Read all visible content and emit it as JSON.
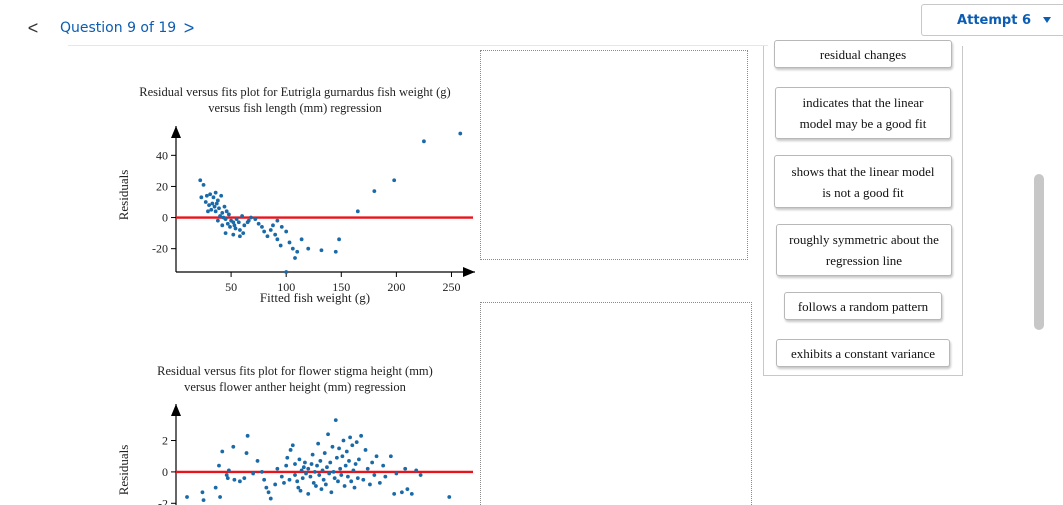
{
  "nav": {
    "prev_icon": "chevron-left-icon",
    "prev_glyph": "<",
    "title": "Question 9 of 19",
    "next_icon": "chevron-right-icon",
    "next_glyph": ">"
  },
  "attempt": {
    "label": "Attempt 6",
    "caret_icon": "caret-down-icon"
  },
  "colors": {
    "accent": "#0b5db3",
    "points": "#1a6aa8",
    "zero_line": "#e8141b"
  },
  "plots": [
    {
      "title_line1": "Residual versus fits plot for Eutrigla gurnardus fish weight (g)",
      "title_line2": "versus fish length (mm) regression",
      "ylabel": "Residuals",
      "xlabel": "Fitted fish weight (g)",
      "chart_data": {
        "type": "scatter",
        "title": "Residual versus fits plot for Eutrigla gurnardus fish weight (g) versus fish length (mm) regression",
        "xlabel": "Fitted fish weight (g)",
        "ylabel": "Residuals",
        "xticks": [
          50,
          100,
          150,
          200,
          250
        ],
        "yticks": [
          40,
          20,
          0,
          -20
        ],
        "xlim": [
          0,
          265
        ],
        "ylim": [
          -35,
          55
        ],
        "reference_line": {
          "y": 0,
          "color": "#e8141b"
        },
        "points": [
          [
            22,
            24
          ],
          [
            25,
            21
          ],
          [
            23,
            13
          ],
          [
            28,
            14
          ],
          [
            31,
            15
          ],
          [
            34,
            13
          ],
          [
            36,
            16
          ],
          [
            38,
            11
          ],
          [
            41,
            14
          ],
          [
            27,
            10
          ],
          [
            30,
            8
          ],
          [
            33,
            9
          ],
          [
            35,
            7
          ],
          [
            37,
            9
          ],
          [
            29,
            4
          ],
          [
            32,
            5
          ],
          [
            36,
            4
          ],
          [
            39,
            6
          ],
          [
            42,
            3
          ],
          [
            44,
            7
          ],
          [
            46,
            4
          ],
          [
            40,
            1
          ],
          [
            43,
            0
          ],
          [
            45,
            -1
          ],
          [
            48,
            2
          ],
          [
            50,
            -2
          ],
          [
            47,
            -4
          ],
          [
            52,
            -3
          ],
          [
            55,
            -1
          ],
          [
            53,
            -5
          ],
          [
            57,
            -3
          ],
          [
            60,
            1
          ],
          [
            49,
            -6
          ],
          [
            54,
            -7
          ],
          [
            58,
            -8
          ],
          [
            62,
            -5
          ],
          [
            65,
            -3
          ],
          [
            38,
            -2
          ],
          [
            42,
            -5
          ],
          [
            45,
            -10
          ],
          [
            52,
            -11
          ],
          [
            58,
            -12
          ],
          [
            61,
            -10
          ],
          [
            66,
            -2
          ],
          [
            68,
            0
          ],
          [
            72,
            -1
          ],
          [
            75,
            -4
          ],
          [
            78,
            -6
          ],
          [
            80,
            -9
          ],
          [
            83,
            -12
          ],
          [
            86,
            -8
          ],
          [
            90,
            -11
          ],
          [
            92,
            -14
          ],
          [
            95,
            -18
          ],
          [
            88,
            -5
          ],
          [
            92,
            -2
          ],
          [
            96,
            -6
          ],
          [
            100,
            -9
          ],
          [
            103,
            -16
          ],
          [
            106,
            -20
          ],
          [
            110,
            -22
          ],
          [
            114,
            -14
          ],
          [
            120,
            -20
          ],
          [
            132,
            -21
          ],
          [
            145,
            -22
          ],
          [
            148,
            -14
          ],
          [
            100,
            -35
          ],
          [
            108,
            -26
          ],
          [
            165,
            4
          ],
          [
            180,
            17
          ],
          [
            198,
            24
          ],
          [
            225,
            49
          ],
          [
            258,
            54
          ]
        ]
      }
    },
    {
      "title_line1": "Residual versus fits plot for flower stigma height (mm)",
      "title_line2": "versus flower anther height (mm) regression",
      "ylabel": "Residuals",
      "chart_data": {
        "type": "scatter",
        "title": "Residual versus fits plot for flower stigma height (mm) versus flower anther height (mm) regression",
        "ylabel": "Residuals",
        "yticks": [
          2,
          0,
          -2
        ],
        "xlim": [
          0,
          265
        ],
        "ylim": [
          -2.3,
          4.2
        ],
        "reference_line": {
          "y": 0,
          "color": "#e8141b"
        },
        "points": [
          [
            10,
            -1.6
          ],
          [
            12,
            -2.0
          ],
          [
            24,
            -1.3
          ],
          [
            25,
            -1.8
          ],
          [
            26,
            -2.1
          ],
          [
            36,
            -1.0
          ],
          [
            40,
            -1.6
          ],
          [
            39,
            0.4
          ],
          [
            42,
            1.3
          ],
          [
            46,
            -0.2
          ],
          [
            47,
            -0.4
          ],
          [
            48,
            0.1
          ],
          [
            52,
            1.6
          ],
          [
            53,
            -0.5
          ],
          [
            58,
            -0.6
          ],
          [
            62,
            -0.4
          ],
          [
            64,
            1.2
          ],
          [
            65,
            2.3
          ],
          [
            70,
            -0.1
          ],
          [
            74,
            0.7
          ],
          [
            78,
            0.0
          ],
          [
            80,
            -0.5
          ],
          [
            82,
            -1.0
          ],
          [
            84,
            -1.3
          ],
          [
            86,
            -1.7
          ],
          [
            88,
            -2.2
          ],
          [
            90,
            -0.8
          ],
          [
            92,
            0.2
          ],
          [
            96,
            -0.3
          ],
          [
            98,
            -0.7
          ],
          [
            100,
            0.4
          ],
          [
            101,
            0.9
          ],
          [
            103,
            -0.5
          ],
          [
            104,
            1.4
          ],
          [
            106,
            1.7
          ],
          [
            108,
            0.5
          ],
          [
            108,
            -0.2
          ],
          [
            110,
            -0.6
          ],
          [
            111,
            -1.0
          ],
          [
            112,
            0.8
          ],
          [
            113,
            -1.2
          ],
          [
            114,
            0.1
          ],
          [
            115,
            -0.4
          ],
          [
            116,
            0.3
          ],
          [
            117,
            0.6
          ],
          [
            118,
            -0.1
          ],
          [
            120,
            -1.4
          ],
          [
            120,
            0.2
          ],
          [
            122,
            -0.3
          ],
          [
            123,
            0.5
          ],
          [
            124,
            1.1
          ],
          [
            125,
            -0.7
          ],
          [
            126,
            0.0
          ],
          [
            127,
            -0.9
          ],
          [
            128,
            0.4
          ],
          [
            129,
            1.8
          ],
          [
            130,
            -0.2
          ],
          [
            131,
            0.7
          ],
          [
            132,
            -1.1
          ],
          [
            133,
            0.1
          ],
          [
            134,
            -0.5
          ],
          [
            135,
            1.2
          ],
          [
            136,
            -0.8
          ],
          [
            137,
            0.3
          ],
          [
            138,
            2.4
          ],
          [
            139,
            -0.1
          ],
          [
            140,
            0.6
          ],
          [
            141,
            -1.3
          ],
          [
            142,
            1.6
          ],
          [
            143,
            0.0
          ],
          [
            144,
            -0.4
          ],
          [
            145,
            3.3
          ],
          [
            146,
            0.9
          ],
          [
            147,
            -0.6
          ],
          [
            148,
            1.5
          ],
          [
            149,
            0.2
          ],
          [
            150,
            -0.2
          ],
          [
            151,
            1.0
          ],
          [
            152,
            2.0
          ],
          [
            153,
            -0.9
          ],
          [
            154,
            0.4
          ],
          [
            155,
            1.3
          ],
          [
            156,
            -0.3
          ],
          [
            157,
            0.7
          ],
          [
            158,
            2.2
          ],
          [
            159,
            -0.6
          ],
          [
            160,
            1.7
          ],
          [
            161,
            0.1
          ],
          [
            162,
            -1.0
          ],
          [
            163,
            0.5
          ],
          [
            164,
            1.9
          ],
          [
            165,
            -0.4
          ],
          [
            166,
            0.8
          ],
          [
            168,
            2.3
          ],
          [
            170,
            -0.5
          ],
          [
            172,
            1.4
          ],
          [
            174,
            0.2
          ],
          [
            176,
            -0.8
          ],
          [
            178,
            0.6
          ],
          [
            180,
            -0.2
          ],
          [
            182,
            1.0
          ],
          [
            185,
            -0.7
          ],
          [
            188,
            0.4
          ],
          [
            190,
            -0.3
          ],
          [
            195,
            1.0
          ],
          [
            198,
            -1.4
          ],
          [
            200,
            -0.1
          ],
          [
            205,
            -1.3
          ],
          [
            208,
            0.2
          ],
          [
            210,
            -1.1
          ],
          [
            214,
            -1.4
          ],
          [
            218,
            0.1
          ],
          [
            222,
            -0.2
          ],
          [
            248,
            -1.6
          ]
        ]
      }
    }
  ],
  "answer_chips": [
    "residual changes",
    "indicates that the linear model may be a good fit",
    "shows that the linear model is not a good fit",
    "roughly symmetric about the regression line",
    "follows a random pattern",
    "exhibits a constant variance"
  ]
}
